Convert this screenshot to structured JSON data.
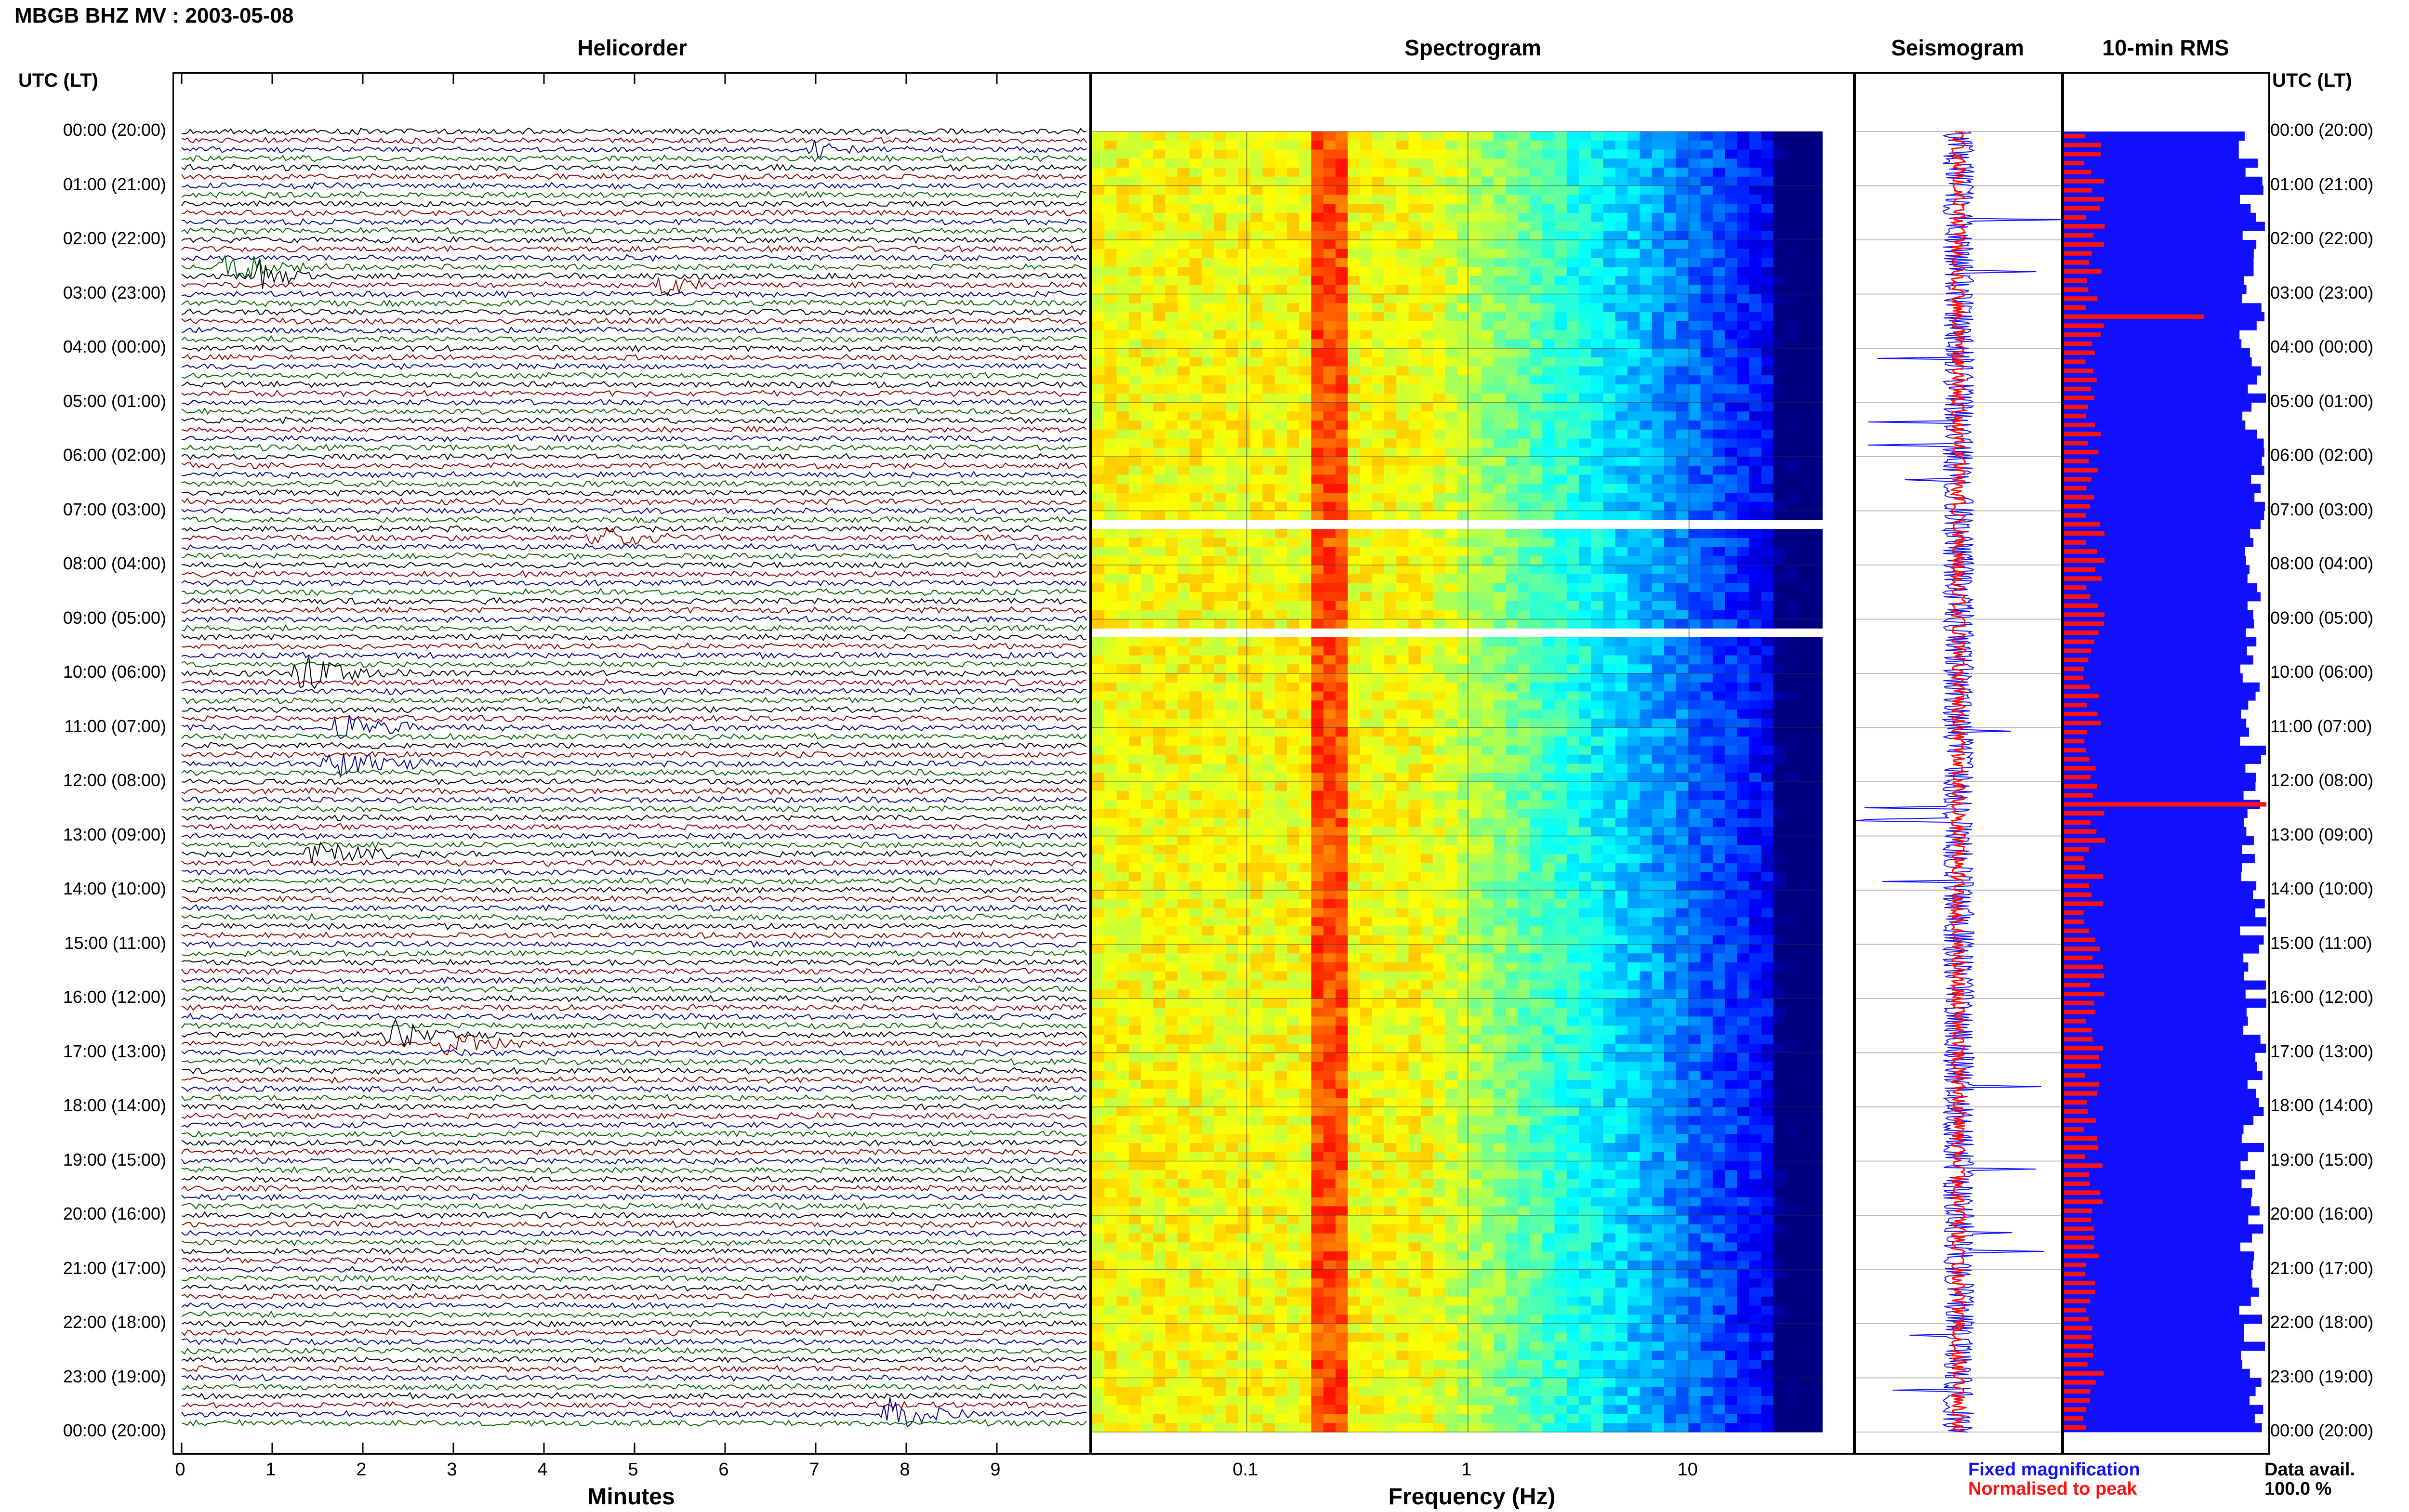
{
  "header": {
    "title": "MBGB BHZ MV : 2003-05-08"
  },
  "panels": {
    "helicorder": "Helicorder",
    "spectrogram": "Spectrogram",
    "seismogram": "Seismogram",
    "rms": "10-min RMS"
  },
  "axis": {
    "utc_label_left": "UTC (LT)",
    "utc_label_right": "UTC (LT)",
    "hours": [
      "00:00 (20:00)",
      "01:00 (21:00)",
      "02:00 (22:00)",
      "03:00 (23:00)",
      "04:00 (00:00)",
      "05:00 (01:00)",
      "06:00 (02:00)",
      "07:00 (03:00)",
      "08:00 (04:00)",
      "09:00 (05:00)",
      "10:00 (06:00)",
      "11:00 (07:00)",
      "12:00 (08:00)",
      "13:00 (09:00)",
      "14:00 (10:00)",
      "15:00 (11:00)",
      "16:00 (12:00)",
      "17:00 (13:00)",
      "18:00 (14:00)",
      "19:00 (15:00)",
      "20:00 (16:00)",
      "21:00 (17:00)",
      "22:00 (18:00)",
      "23:00 (19:00)",
      "00:00 (20:00)"
    ],
    "minutes_ticks": [
      "0",
      "1",
      "2",
      "3",
      "4",
      "5",
      "6",
      "7",
      "8",
      "9"
    ],
    "minutes_label": "Minutes",
    "frequency_ticks": [
      "0.1",
      "1",
      "10"
    ],
    "frequency_label": "Frequency (Hz)"
  },
  "legend": {
    "fixed": "Fixed magnification",
    "normalised": "Normalised to peak",
    "avail_label": "Data avail.",
    "avail_value": "100.0 %"
  },
  "colors": {
    "trace_colors": [
      "#000000",
      "#8b0000",
      "#00008b",
      "#006400"
    ],
    "rms_blue": "#1010ff",
    "rms_red": "#ff1010"
  },
  "chart_data": [
    {
      "type": "line",
      "title": "Helicorder",
      "xlabel": "Minutes",
      "xlim": [
        0,
        10
      ],
      "y_axis": "UTC (LT)",
      "rows_per_hour": 6,
      "hours": 24,
      "notes": "Stacked 10-minute seismic traces (144 rows), colours cycle black, dark red, dark blue, green."
    },
    {
      "type": "heatmap",
      "title": "Spectrogram",
      "xlabel": "Frequency (Hz)",
      "x_scale": "log",
      "xlim": [
        0.02,
        40
      ],
      "x_ticks": [
        0.1,
        1,
        10
      ],
      "colormap": "jet",
      "white_gap_rows_utc": [
        "07:10",
        "09:10"
      ]
    },
    {
      "type": "line",
      "title": "Seismogram",
      "series": [
        {
          "name": "Fixed magnification",
          "color": "#1010ff"
        },
        {
          "name": "Normalised to peak",
          "color": "#ff1010"
        }
      ]
    },
    {
      "type": "bar",
      "title": "10-min RMS",
      "orientation": "horizontal",
      "series": [
        {
          "name": "Fixed magnification",
          "color": "#1010ff"
        },
        {
          "name": "Normalised to peak",
          "color": "#ff1010"
        }
      ],
      "peaks_utc": [
        "03:20",
        "12:20"
      ]
    }
  ]
}
